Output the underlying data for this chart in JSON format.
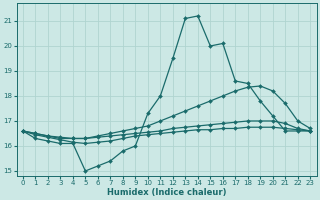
{
  "xlabel": "Humidex (Indice chaleur)",
  "bg_color": "#cce8e5",
  "grid_color": "#b0d4d0",
  "line_color": "#1a6b6b",
  "xlim": [
    -0.5,
    23.5
  ],
  "ylim": [
    14.8,
    21.7
  ],
  "yticks": [
    15,
    16,
    17,
    18,
    19,
    20,
    21
  ],
  "xticks": [
    0,
    1,
    2,
    3,
    4,
    5,
    6,
    7,
    8,
    9,
    10,
    11,
    12,
    13,
    14,
    15,
    16,
    17,
    18,
    19,
    20,
    21,
    22,
    23
  ],
  "series": [
    {
      "x": [
        0,
        1,
        2,
        3,
        4,
        5,
        6,
        7,
        8,
        9,
        10,
        11,
        12,
        13,
        14,
        15,
        16,
        17,
        18,
        19,
        20,
        21,
        22,
        23
      ],
      "y": [
        16.6,
        16.3,
        16.2,
        16.1,
        16.1,
        15.0,
        15.2,
        15.4,
        15.8,
        16.0,
        17.3,
        18.0,
        19.5,
        21.1,
        21.2,
        20.0,
        20.1,
        18.6,
        18.5,
        17.8,
        17.2,
        16.6,
        16.6,
        16.6
      ]
    },
    {
      "x": [
        0,
        1,
        2,
        3,
        4,
        5,
        6,
        7,
        8,
        9,
        10,
        11,
        12,
        13,
        14,
        15,
        16,
        17,
        18,
        19,
        20,
        21,
        22,
        23
      ],
      "y": [
        16.6,
        16.5,
        16.4,
        16.3,
        16.3,
        16.3,
        16.4,
        16.5,
        16.6,
        16.7,
        16.8,
        17.0,
        17.2,
        17.4,
        17.6,
        17.8,
        18.0,
        18.2,
        18.35,
        18.4,
        18.2,
        17.7,
        17.0,
        16.7
      ]
    },
    {
      "x": [
        0,
        1,
        2,
        3,
        4,
        5,
        6,
        7,
        8,
        9,
        10,
        11,
        12,
        13,
        14,
        15,
        16,
        17,
        18,
        19,
        20,
        21,
        22,
        23
      ],
      "y": [
        16.6,
        16.5,
        16.4,
        16.35,
        16.3,
        16.3,
        16.35,
        16.4,
        16.45,
        16.5,
        16.55,
        16.6,
        16.7,
        16.75,
        16.8,
        16.85,
        16.9,
        16.95,
        17.0,
        17.0,
        17.0,
        16.9,
        16.7,
        16.6
      ]
    },
    {
      "x": [
        0,
        1,
        2,
        3,
        4,
        5,
        6,
        7,
        8,
        9,
        10,
        11,
        12,
        13,
        14,
        15,
        16,
        17,
        18,
        19,
        20,
        21,
        22,
        23
      ],
      "y": [
        16.6,
        16.45,
        16.35,
        16.25,
        16.15,
        16.1,
        16.15,
        16.2,
        16.3,
        16.4,
        16.45,
        16.5,
        16.55,
        16.6,
        16.65,
        16.65,
        16.7,
        16.7,
        16.75,
        16.75,
        16.75,
        16.7,
        16.65,
        16.6
      ]
    }
  ],
  "marker": "D",
  "markersize": 2.0,
  "linewidth": 0.9
}
